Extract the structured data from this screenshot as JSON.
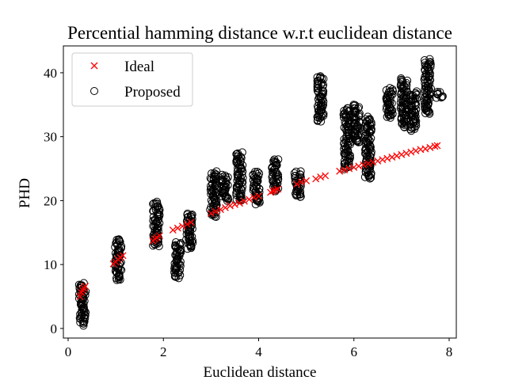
{
  "chart_data": {
    "type": "scatter",
    "title": "Percential hamming distance w.r.t euclidean distance",
    "xlabel": "Euclidean distance",
    "ylabel": "PHD",
    "xlim": [
      -0.1,
      8.15
    ],
    "ylim": [
      -1.5,
      44.2
    ],
    "xticks": [
      0,
      2,
      4,
      6,
      8
    ],
    "yticks": [
      0,
      10,
      20,
      30,
      40
    ],
    "grid": false,
    "legend_position": "top-left",
    "series": [
      {
        "name": "Ideal",
        "marker": "x",
        "color": "#ff0000",
        "points": [
          [
            0.25,
            5.0
          ],
          [
            0.28,
            5.6
          ],
          [
            0.3,
            6.0
          ],
          [
            0.33,
            6.3
          ],
          [
            0.36,
            6.6
          ],
          [
            0.95,
            10.1
          ],
          [
            1.0,
            10.4
          ],
          [
            1.05,
            10.8
          ],
          [
            1.1,
            11.1
          ],
          [
            1.15,
            11.4
          ],
          [
            1.78,
            13.7
          ],
          [
            1.82,
            14.0
          ],
          [
            1.86,
            14.2
          ],
          [
            1.92,
            14.5
          ],
          [
            2.2,
            15.4
          ],
          [
            2.3,
            15.7
          ],
          [
            2.4,
            16.0
          ],
          [
            2.5,
            16.3
          ],
          [
            2.58,
            16.6
          ],
          [
            3.0,
            18.0
          ],
          [
            3.1,
            18.3
          ],
          [
            3.2,
            18.6
          ],
          [
            3.3,
            18.9
          ],
          [
            3.4,
            19.2
          ],
          [
            3.5,
            19.4
          ],
          [
            3.6,
            19.6
          ],
          [
            3.7,
            19.9
          ],
          [
            3.8,
            20.2
          ],
          [
            3.9,
            20.5
          ],
          [
            4.0,
            20.7
          ],
          [
            4.25,
            21.3
          ],
          [
            4.3,
            21.5
          ],
          [
            4.35,
            21.6
          ],
          [
            4.4,
            21.8
          ],
          [
            4.8,
            22.6
          ],
          [
            4.9,
            22.9
          ],
          [
            5.0,
            23.1
          ],
          [
            5.2,
            23.4
          ],
          [
            5.3,
            23.7
          ],
          [
            5.4,
            23.9
          ],
          [
            5.7,
            24.6
          ],
          [
            5.8,
            24.8
          ],
          [
            5.9,
            25.0
          ],
          [
            6.0,
            25.2
          ],
          [
            6.1,
            25.4
          ],
          [
            6.2,
            25.6
          ],
          [
            6.3,
            25.8
          ],
          [
            6.4,
            26.0
          ],
          [
            6.5,
            26.2
          ],
          [
            6.6,
            26.4
          ],
          [
            6.7,
            26.6
          ],
          [
            6.8,
            26.8
          ],
          [
            6.9,
            27.0
          ],
          [
            7.0,
            27.2
          ],
          [
            7.1,
            27.4
          ],
          [
            7.2,
            27.6
          ],
          [
            7.3,
            27.8
          ],
          [
            7.4,
            28.0
          ],
          [
            7.5,
            28.1
          ],
          [
            7.6,
            28.3
          ],
          [
            7.7,
            28.5
          ],
          [
            7.75,
            28.6
          ]
        ]
      },
      {
        "name": "Proposed",
        "marker": "o",
        "color": "#000000",
        "clusters": [
          {
            "x": 0.3,
            "y_min": 0.5,
            "y_max": 7.0
          },
          {
            "x": 1.05,
            "y_min": 7.5,
            "y_max": 14.0
          },
          {
            "x": 1.85,
            "y_min": 12.8,
            "y_max": 19.8
          },
          {
            "x": 2.3,
            "y_min": 8.0,
            "y_max": 13.5
          },
          {
            "x": 2.55,
            "y_min": 12.5,
            "y_max": 18.0
          },
          {
            "x": 3.05,
            "y_min": 17.5,
            "y_max": 24.5
          },
          {
            "x": 3.3,
            "y_min": 20.0,
            "y_max": 24.0
          },
          {
            "x": 3.6,
            "y_min": 20.0,
            "y_max": 27.5
          },
          {
            "x": 3.95,
            "y_min": 19.5,
            "y_max": 24.5
          },
          {
            "x": 4.35,
            "y_min": 21.5,
            "y_max": 26.5
          },
          {
            "x": 4.82,
            "y_min": 20.5,
            "y_max": 24.5
          },
          {
            "x": 5.3,
            "y_min": 32.5,
            "y_max": 39.5
          },
          {
            "x": 5.85,
            "y_min": 25.0,
            "y_max": 34.5
          },
          {
            "x": 6.05,
            "y_min": 29.0,
            "y_max": 35.0
          },
          {
            "x": 6.3,
            "y_min": 23.5,
            "y_max": 33.0
          },
          {
            "x": 6.75,
            "y_min": 33.0,
            "y_max": 37.5
          },
          {
            "x": 7.05,
            "y_min": 31.5,
            "y_max": 39.0
          },
          {
            "x": 7.25,
            "y_min": 31.0,
            "y_max": 37.0
          },
          {
            "x": 7.55,
            "y_min": 33.5,
            "y_max": 42.0
          },
          {
            "x": 7.8,
            "y_min": 36.0,
            "y_max": 37.0
          }
        ]
      }
    ]
  }
}
